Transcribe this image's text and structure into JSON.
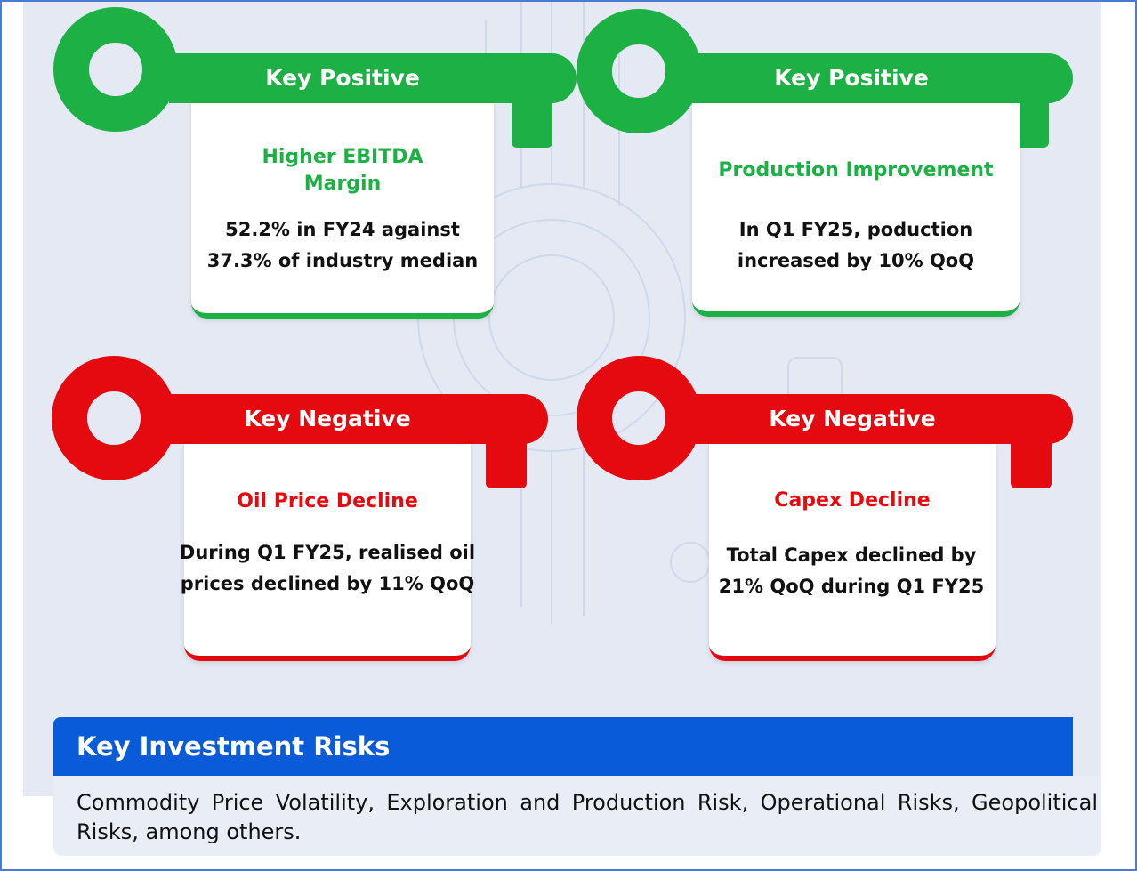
{
  "cards": [
    {
      "tag": "Key Positive",
      "title": "Higher EBITDA Margin",
      "body": "52.2% in FY24 against 37.3% of industry median"
    },
    {
      "tag": "Key Positive",
      "title": "Production Improvement",
      "body": "In Q1 FY25, poduction increased by 10% QoQ"
    },
    {
      "tag": "Key Negative",
      "title": "Oil Price Decline",
      "body": "During Q1 FY25, realised oil prices declined by 11% QoQ"
    },
    {
      "tag": "Key Negative",
      "title": "Capex Decline",
      "body": "Total Capex declined by 21% QoQ during Q1 FY25"
    }
  ],
  "risks": {
    "heading": "Key Investment Risks",
    "text": "Commodity Price Volatility, Exploration and Production Risk, Operational Risks, Geopolitical Risks, among others."
  },
  "colors": {
    "positive": "#1db045",
    "negative": "#e50a10",
    "risk_header": "#0a5bd8"
  }
}
